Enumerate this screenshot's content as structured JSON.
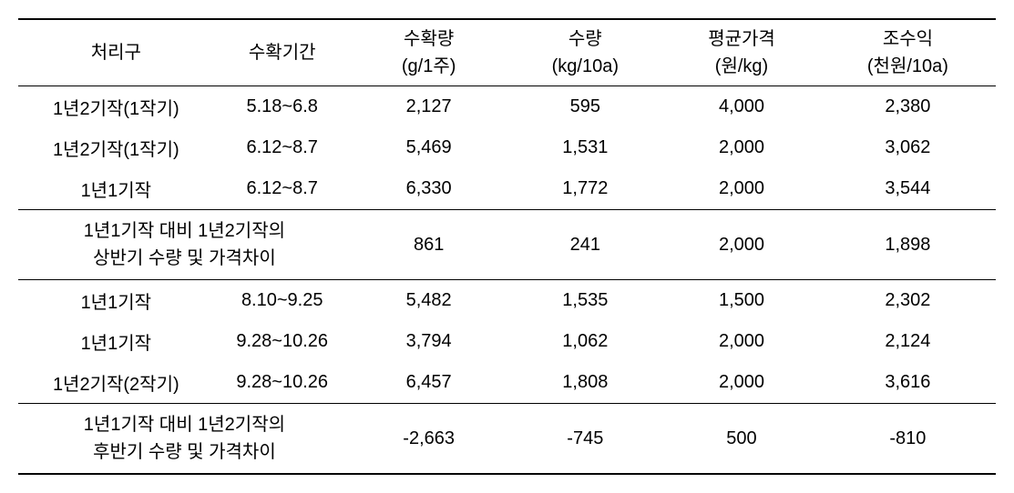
{
  "table": {
    "columns": [
      {
        "line1": "처리구",
        "line2": ""
      },
      {
        "line1": "수확기간",
        "line2": ""
      },
      {
        "line1": "수확량",
        "line2": "(g/1주)"
      },
      {
        "line1": "수량",
        "line2": "(kg/10a)"
      },
      {
        "line1": "평균가격",
        "line2": "(원/kg)"
      },
      {
        "line1": "조수익",
        "line2": "(천원/10a)"
      }
    ],
    "section1": [
      {
        "c1": "1년2기작(1작기)",
        "c2": "5.18~6.8",
        "c3": "2,127",
        "c4": "595",
        "c5": "4,000",
        "c6": "2,380"
      },
      {
        "c1": "1년2기작(1작기)",
        "c2": "6.12~8.7",
        "c3": "5,469",
        "c4": "1,531",
        "c5": "2,000",
        "c6": "3,062"
      },
      {
        "c1": "1년1기작",
        "c2": "6.12~8.7",
        "c3": "6,330",
        "c4": "1,772",
        "c5": "2,000",
        "c6": "3,544"
      }
    ],
    "summary1": {
      "label_line1": "1년1기작 대비 1년2기작의",
      "label_line2": "상반기 수량 및 가격차이",
      "c3": "861",
      "c4": "241",
      "c5": "2,000",
      "c6": "1,898"
    },
    "section2": [
      {
        "c1": "1년1기작",
        "c2": "8.10~9.25",
        "c3": "5,482",
        "c4": "1,535",
        "c5": "1,500",
        "c6": "2,302"
      },
      {
        "c1": "1년1기작",
        "c2": "9.28~10.26",
        "c3": "3,794",
        "c4": "1,062",
        "c5": "2,000",
        "c6": "2,124"
      },
      {
        "c1": "1년2기작(2작기)",
        "c2": "9.28~10.26",
        "c3": "6,457",
        "c4": "1,808",
        "c5": "2,000",
        "c6": "3,616"
      }
    ],
    "summary2": {
      "label_line1": "1년1기작 대비 1년2기작의",
      "label_line2": "후반기 수량 및 가격차이",
      "c3": "-2,663",
      "c4": "-745",
      "c5": "500",
      "c6": "-810"
    }
  }
}
